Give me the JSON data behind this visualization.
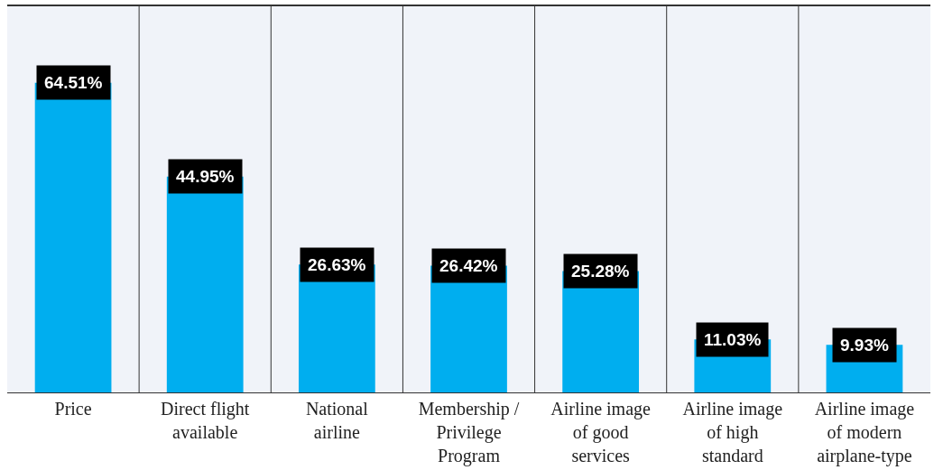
{
  "chart_data": {
    "type": "bar",
    "categories": [
      "Price",
      "Direct flight available",
      "National airline",
      "Membership / Privilege Program",
      "Airline image of good services",
      "Airline image of high standard",
      "Airline image of modern airplane-type"
    ],
    "values": [
      64.51,
      44.95,
      26.63,
      26.42,
      25.28,
      11.03,
      9.93
    ],
    "value_labels": [
      "64.51%",
      "44.95%",
      "26.63%",
      "26.42%",
      "25.28%",
      "11.03%",
      "9.93%"
    ],
    "color": "#00aeef",
    "grid": false,
    "legend": false
  }
}
